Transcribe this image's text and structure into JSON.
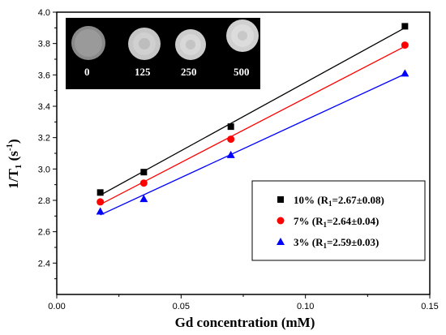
{
  "chart_data": {
    "type": "scatter",
    "xlabel": "Gd concentration (mM)",
    "ylabel": {
      "main": "1/T",
      "sub": "1",
      "unit": " (s",
      "sup": "-1",
      "close": ")"
    },
    "xlim": [
      0.0,
      0.15
    ],
    "ylim": [
      2.2,
      4.0
    ],
    "xticks": [
      "0.00",
      "0.05",
      "0.10",
      "0.15"
    ],
    "yticks": [
      "2.4",
      "2.6",
      "2.8",
      "3.0",
      "3.2",
      "3.4",
      "3.6",
      "3.8",
      "4.0"
    ],
    "grid": false,
    "legend_position": "bottom-right",
    "series": [
      {
        "name": "10% (R1=2.67±0.08)",
        "label_parts": [
          "10% (R",
          "1",
          "=2.67±0.08)"
        ],
        "color": "#000000",
        "marker": "square",
        "x": [
          0.0175,
          0.035,
          0.07,
          0.14
        ],
        "y": [
          2.85,
          2.98,
          3.27,
          3.91
        ]
      },
      {
        "name": "7% (R1=2.64±0.04)",
        "label_parts": [
          "7% (R",
          "1",
          "=2.64±0.04)"
        ],
        "color": "#ff0000",
        "marker": "circle",
        "x": [
          0.0175,
          0.035,
          0.07,
          0.14
        ],
        "y": [
          2.79,
          2.91,
          3.19,
          3.79
        ]
      },
      {
        "name": "3% (R1=2.59±0.03)",
        "label_parts": [
          "3% (R",
          "1",
          "=2.59±0.03)"
        ],
        "color": "#0000ff",
        "marker": "triangle",
        "x": [
          0.0175,
          0.035,
          0.07,
          0.14
        ],
        "y": [
          2.73,
          2.81,
          3.09,
          3.61
        ]
      }
    ],
    "inset": {
      "description_labels": [
        "0",
        "125",
        "250",
        "500"
      ],
      "background": "#000000"
    }
  }
}
